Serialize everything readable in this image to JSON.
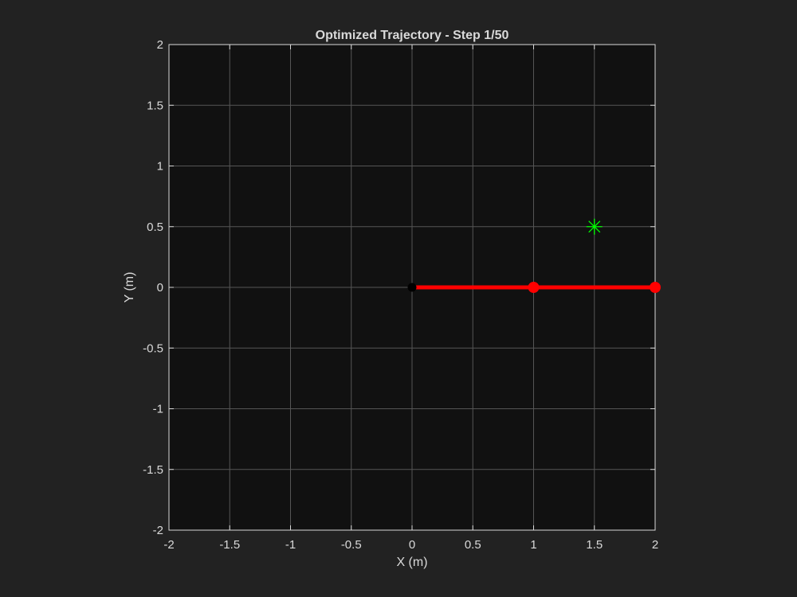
{
  "chart_data": {
    "type": "line",
    "title": "Optimized Trajectory - Step 1/50",
    "xlabel": "X (m)",
    "ylabel": "Y (m)",
    "xlim": [
      -2,
      2
    ],
    "ylim": [
      -2,
      2
    ],
    "xticks": [
      -2,
      -1.5,
      -1,
      -0.5,
      0,
      0.5,
      1,
      1.5,
      2
    ],
    "yticks": [
      -2,
      -1.5,
      -1,
      -0.5,
      0,
      0.5,
      1,
      1.5,
      2
    ],
    "xtick_labels": [
      "-2",
      "-1.5",
      "-1",
      "-0.5",
      "0",
      "0.5",
      "1",
      "1.5",
      "2"
    ],
    "ytick_labels": [
      "-2",
      "-1.5",
      "-1",
      "-0.5",
      "0",
      "0.5",
      "1",
      "1.5",
      "2"
    ],
    "grid": true,
    "series": [
      {
        "kind": "arm",
        "color": "#ff0000",
        "x": [
          0,
          1,
          2
        ],
        "y": [
          0,
          0,
          0
        ]
      }
    ],
    "base": {
      "x": 0,
      "y": 0,
      "color": "#000000"
    },
    "target": {
      "x": 1.5,
      "y": 0.5,
      "marker": "asterisk",
      "color": "#00ff00"
    }
  },
  "colors": {
    "figure_bg": "#222222",
    "axes_bg": "#111111",
    "grid": "#555555",
    "axis_line": "#d9d9d9",
    "text": "#d9d9d9"
  }
}
